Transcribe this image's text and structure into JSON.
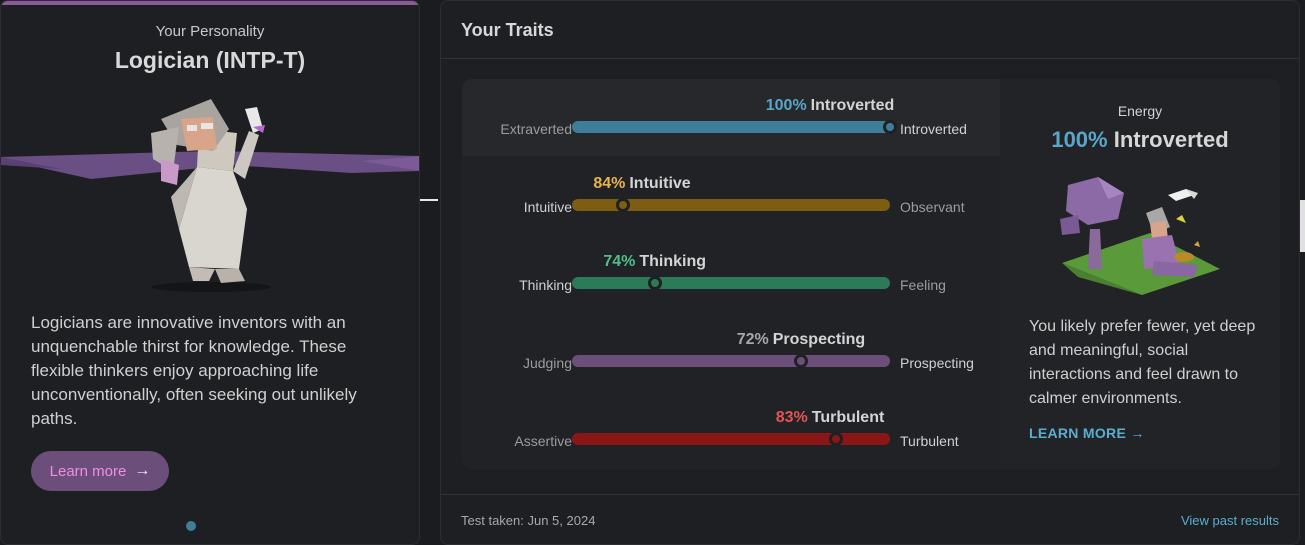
{
  "personality_card": {
    "kicker": "Your Personality",
    "title": "Logician (INTP-T)",
    "description": "Logicians are innovative inventors with an unquenchable thirst for knowledge. These flexible thinkers enjoy approaching life unconventionally, often seeking out unlikely paths.",
    "learn_more_label": "Learn more",
    "learn_more_icon": "arrow-right-icon",
    "accent_color": "#8a5a9a",
    "carousel_dots": 1
  },
  "traits_card": {
    "title": "Your Traits",
    "traits": [
      {
        "percent": "100%",
        "name": "Introverted",
        "left": "Extraverted",
        "right": "Introverted",
        "color": "#3e7e9a",
        "pct_color": "#5aa6c9",
        "value": 1.0,
        "side": "right"
      },
      {
        "percent": "84%",
        "name": "Intuitive",
        "left": "Intuitive",
        "right": "Observant",
        "color": "#7c5d12",
        "pct_color": "#e8b44c",
        "value": 0.84,
        "side": "left"
      },
      {
        "percent": "74%",
        "name": "Thinking",
        "left": "Thinking",
        "right": "Feeling",
        "color": "#2d7a58",
        "pct_color": "#4fbf8b",
        "value": 0.74,
        "side": "left"
      },
      {
        "percent": "72%",
        "name": "Prospecting",
        "left": "Judging",
        "right": "Prospecting",
        "color": "#6b4f7a",
        "pct_color": "#a7a7a7",
        "value": 0.72,
        "side": "right"
      },
      {
        "percent": "83%",
        "name": "Turbulent",
        "left": "Assertive",
        "right": "Turbulent",
        "color": "#8b1616",
        "pct_color": "#e05555",
        "value": 0.83,
        "side": "right"
      }
    ],
    "energy": {
      "kicker": "Energy",
      "percent": "100%",
      "name": "Introverted",
      "description": "You likely prefer fewer, yet deep and meaningful, social interactions and feel drawn to calmer environments.",
      "link_label": "LEARN MORE",
      "link_icon": "arrow-right-icon"
    },
    "footer": {
      "test_taken": "Test taken: Jun 5, 2024",
      "past_results_label": "View past results"
    }
  }
}
